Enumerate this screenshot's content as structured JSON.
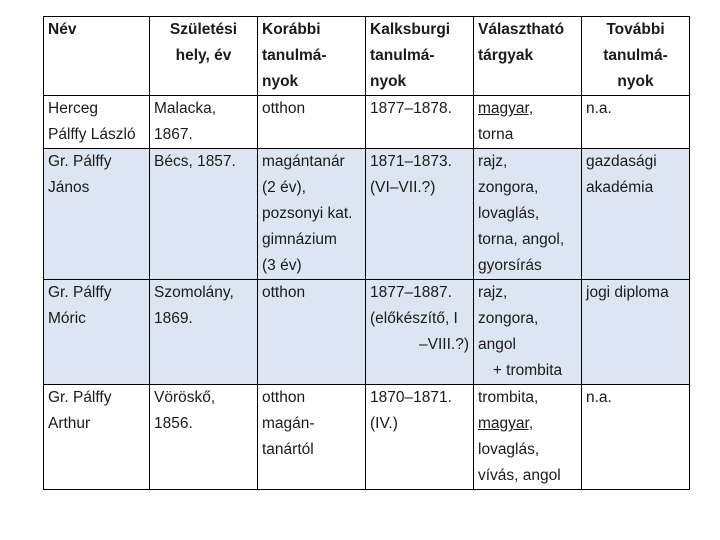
{
  "headers": {
    "nev": [
      "Név"
    ],
    "szuletesi": [
      "Születési",
      "hely, év"
    ],
    "korabbi": [
      "Korábbi",
      "tanulmá-",
      "nyok"
    ],
    "kalksburgi": [
      "Kalksburgi",
      "tanulmá-",
      "nyok"
    ],
    "valaszthato": [
      "Választható",
      "tárgyak"
    ],
    "tovabbi": [
      "További",
      "tanulmá-",
      "nyok"
    ]
  },
  "rows": [
    {
      "nev": [
        "Herceg",
        "Pálffy László"
      ],
      "szuletesi": [
        "Malacka,",
        "1867."
      ],
      "korabbi": [
        "otthon"
      ],
      "kalksburgi": [
        "1877–1878."
      ],
      "valaszthato": [
        "magyar,",
        "torna"
      ],
      "tovabbi": [
        "n.a."
      ]
    },
    {
      "nev": [
        "Gr. Pálffy",
        "János"
      ],
      "szuletesi": [
        "Bécs, 1857."
      ],
      "korabbi": [
        "magántanár",
        "(2 év),",
        "pozsonyi kat.",
        "gimnázium",
        "(3 év)"
      ],
      "kalksburgi": [
        "1871–1873.",
        "(VI–VII.?)"
      ],
      "valaszthato": [
        "rajz,",
        "zongora,",
        "lovaglás,",
        "torna, angol,",
        "gyorsírás"
      ],
      "tovabbi": [
        "gazdasági",
        "akadémia"
      ]
    },
    {
      "nev": [
        "Gr. Pálffy",
        "Móric"
      ],
      "szuletesi": [
        "Szomolány,",
        "1869."
      ],
      "korabbi": [
        "otthon"
      ],
      "kalksburgi": [
        "1877–1887.",
        "(előkészítő, I",
        "–VIII.?)"
      ],
      "valaszthato": [
        "rajz,",
        "zongora,",
        "angol",
        "+ trombita"
      ],
      "tovabbi": [
        "jogi diploma"
      ]
    },
    {
      "nev": [
        "Gr. Pálffy",
        "Arthur"
      ],
      "szuletesi": [
        "Vöröskő,",
        "1856."
      ],
      "korabbi": [
        "otthon",
        "magán-",
        "tanártól"
      ],
      "kalksburgi": [
        "1870–1871.",
        "(IV.)"
      ],
      "valaszthato": [
        "trombita,",
        "magyar,",
        "lovaglás,",
        "vívás, angol"
      ],
      "tovabbi": [
        "n.a."
      ]
    }
  ]
}
